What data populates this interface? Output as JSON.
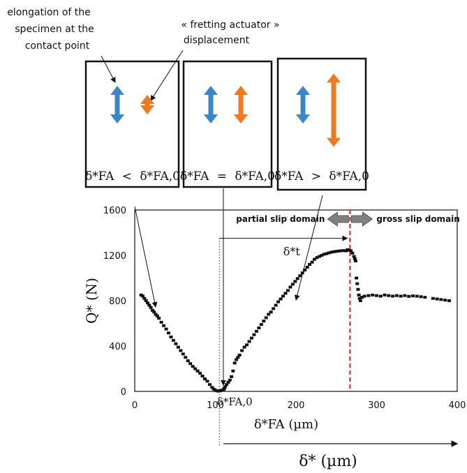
{
  "annotations": {
    "elongation_line1": "elongation of the",
    "elongation_line2": "specimen at the",
    "elongation_line3": "contact point",
    "actuator_line1": "« fretting actuator »",
    "actuator_line2": "displacement",
    "partial_slip": "partial slip domain",
    "gross_slip": "gross slip domain"
  },
  "panels": [
    {
      "label_left": "δ*FA",
      "relation": "<",
      "label_right": "δ*FA,0",
      "orange_ratio": 0.25
    },
    {
      "label_left": "δ*FA",
      "relation": "=",
      "label_right": "δ*FA,0",
      "orange_ratio": 1.0
    },
    {
      "label_left": "δ*FA",
      "relation": ">",
      "label_right": "δ*FA,0",
      "orange_ratio": 1.95
    }
  ],
  "colors": {
    "blue_arrow": "#3a86c8",
    "orange_arrow": "#ee7a22",
    "transition_line": "#e8191a",
    "domain_arrow": "#808080",
    "marker": "#111111"
  },
  "chart_data": {
    "type": "scatter",
    "xlabel": "δ*FA (µm)",
    "ylabel": "Q* (N)",
    "xlim": [
      0,
      400
    ],
    "ylim": [
      0,
      1600
    ],
    "xticks": [
      0,
      100,
      200,
      300,
      400
    ],
    "yticks": [
      0,
      400,
      800,
      1200,
      1600
    ],
    "delta_fa0_x": 105,
    "delta_fa0_label": "δ*FA,0",
    "transition_x": 267,
    "delta_t_label": "δ*t",
    "lower_axis_label": "δ* (µm)",
    "series": [
      {
        "x": [
          8,
          10,
          12,
          14,
          16,
          18,
          20,
          22,
          24,
          26,
          28,
          30,
          33,
          36,
          39,
          42,
          45,
          48,
          51,
          54,
          57,
          60,
          63,
          66,
          69,
          72,
          75,
          78,
          81,
          84,
          87,
          90,
          93,
          96,
          98,
          100,
          102,
          104,
          106,
          108,
          110,
          111,
          112,
          114,
          116,
          118,
          120,
          122,
          124,
          126,
          128,
          130,
          133,
          136,
          139,
          142,
          145,
          148,
          151,
          154,
          157,
          160,
          163,
          166,
          169,
          172,
          175,
          178,
          181,
          184,
          187,
          190,
          193,
          196,
          199,
          202,
          205,
          208,
          211,
          214,
          217,
          220,
          223,
          226,
          229,
          232,
          235,
          238,
          241,
          244,
          247,
          250,
          253,
          256,
          259,
          262,
          264,
          266,
          268,
          270,
          272,
          273,
          274,
          275,
          276,
          277,
          278,
          279,
          280,
          282,
          285,
          290,
          295,
          300,
          305,
          310,
          315,
          320,
          325,
          330,
          335,
          340,
          345,
          350,
          355,
          360,
          370,
          375,
          380,
          385,
          390
        ],
        "y": [
          850,
          840,
          820,
          800,
          780,
          760,
          740,
          715,
          700,
          680,
          665,
          645,
          610,
          580,
          550,
          515,
          480,
          450,
          420,
          390,
          360,
          330,
          300,
          270,
          245,
          220,
          200,
          180,
          160,
          135,
          110,
          90,
          60,
          35,
          20,
          10,
          5,
          2,
          5,
          10,
          15,
          25,
          40,
          60,
          80,
          100,
          130,
          180,
          250,
          280,
          300,
          320,
          360,
          390,
          410,
          440,
          470,
          500,
          530,
          560,
          590,
          620,
          650,
          680,
          700,
          730,
          760,
          790,
          815,
          840,
          865,
          890,
          920,
          945,
          970,
          995,
          1020,
          1045,
          1070,
          1095,
          1120,
          1140,
          1165,
          1180,
          1190,
          1200,
          1210,
          1215,
          1222,
          1228,
          1232,
          1235,
          1238,
          1240,
          1242,
          1240,
          1250,
          1245,
          1240,
          1220,
          1190,
          1170,
          1150,
          1000,
          950,
          900,
          850,
          820,
          800,
          830,
          840,
          845,
          850,
          845,
          840,
          850,
          845,
          840,
          845,
          840,
          845,
          838,
          842,
          840,
          835,
          830,
          820,
          815,
          810,
          805,
          800
        ]
      }
    ]
  }
}
